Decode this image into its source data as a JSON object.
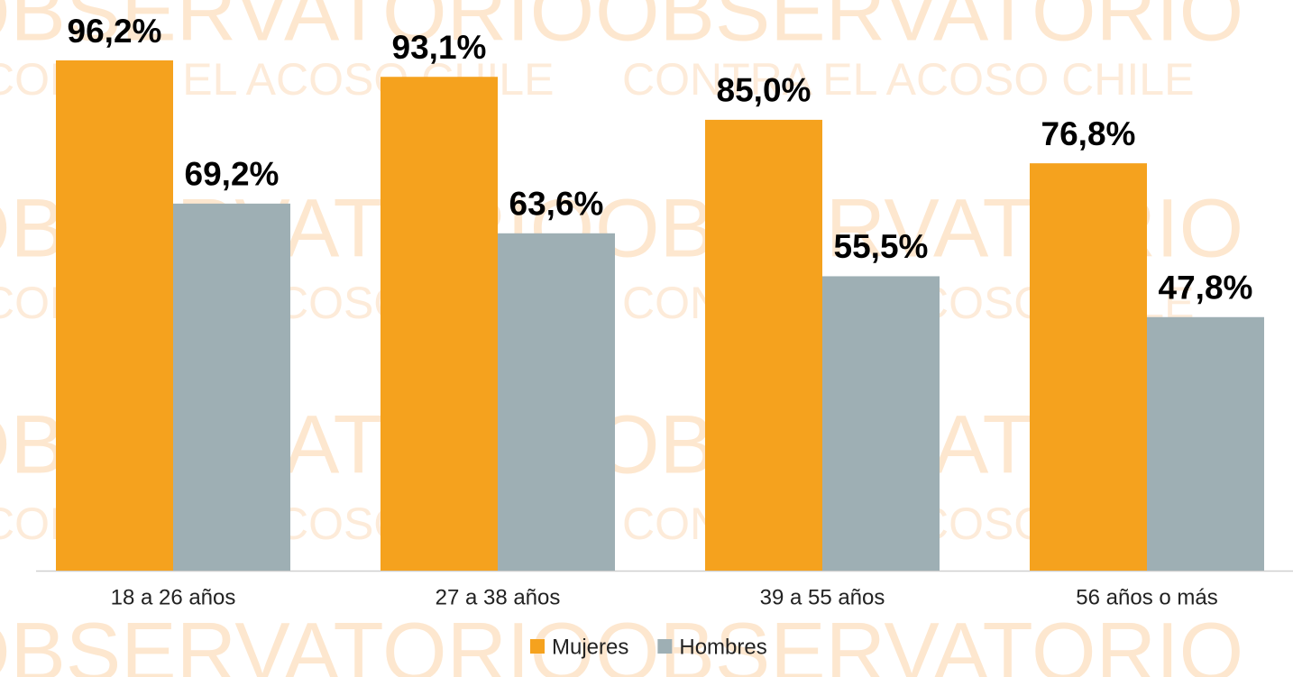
{
  "watermark": [
    "OBSERVATORIO",
    "CONTRA EL ACOSO CHILE"
  ],
  "chart_data": {
    "type": "bar",
    "categories": [
      "18 a 26 años",
      "27 a 38 años",
      "39 a 55 años",
      "56 años o más"
    ],
    "series": [
      {
        "name": "Mujeres",
        "color": "#f5a21e",
        "values": [
          96.2,
          93.1,
          85.0,
          76.8
        ],
        "value_labels": [
          "96,2%",
          "93,1%",
          "85,0%",
          "76,8%"
        ]
      },
      {
        "name": "Hombres",
        "color": "#9eafb4",
        "values": [
          69.2,
          63.6,
          55.5,
          47.8
        ],
        "value_labels": [
          "69,2%",
          "63,6%",
          "55,5%",
          "47,8%"
        ]
      }
    ],
    "legend": "bottom"
  }
}
